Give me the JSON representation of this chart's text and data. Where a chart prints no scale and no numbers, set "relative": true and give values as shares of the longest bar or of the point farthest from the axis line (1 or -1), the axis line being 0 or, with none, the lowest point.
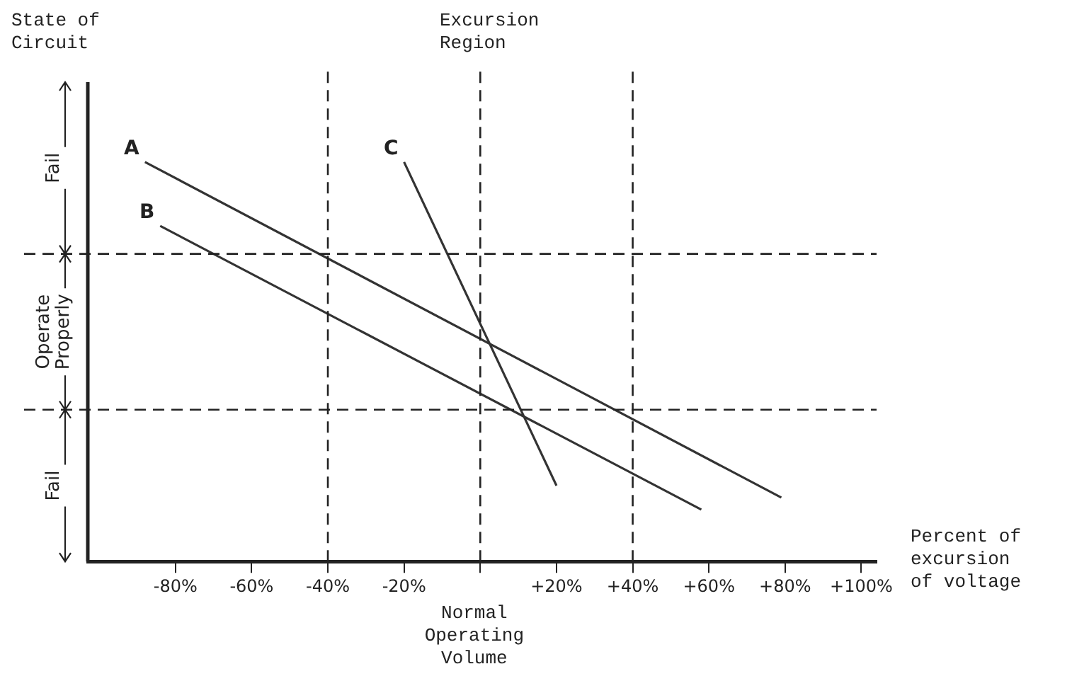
{
  "chart_data": {
    "type": "line",
    "relative": true,
    "xlabel": "Percent of excursion of voltage",
    "xlim": [
      -103,
      104
    ],
    "xticks": [
      {
        "value": -80,
        "label": "-80%"
      },
      {
        "value": -60,
        "label": "-60%"
      },
      {
        "value": -40,
        "label": "-40%"
      },
      {
        "value": -20,
        "label": "-20%"
      },
      {
        "value": 0,
        "label": null
      },
      {
        "value": 20,
        "label": "+20%"
      },
      {
        "value": 40,
        "label": "+40%"
      },
      {
        "value": 60,
        "label": "+60%"
      },
      {
        "value": 80,
        "label": "+80%"
      },
      {
        "value": 100,
        "label": "+100%"
      }
    ],
    "series": [
      {
        "name": "A",
        "color": "#333333",
        "x": [
          -88,
          79
        ],
        "values": [
          1,
          0.16
        ]
      },
      {
        "name": "B",
        "color": "#333333",
        "x": [
          -84,
          58
        ],
        "values": [
          0.84,
          0.13
        ]
      },
      {
        "name": "C",
        "color": "#333333",
        "x": [
          -20,
          20
        ],
        "values": [
          1,
          0.19
        ]
      }
    ],
    "ref_lines": [
      {
        "axis": "x",
        "value": -40,
        "line_style": "dashed"
      },
      {
        "axis": "x",
        "value": 0,
        "line_style": "dashed"
      },
      {
        "axis": "x",
        "value": 40,
        "line_style": "dashed"
      },
      {
        "axis": "y",
        "value": 0.77,
        "line_style": "dashed"
      },
      {
        "axis": "y",
        "value": 0.38,
        "line_style": "dashed"
      }
    ],
    "annotations": [
      "State of Circuit",
      "Excursion Region",
      "Normal Operating Volume",
      "Fail",
      "Operate Properly",
      "Fail"
    ]
  }
}
